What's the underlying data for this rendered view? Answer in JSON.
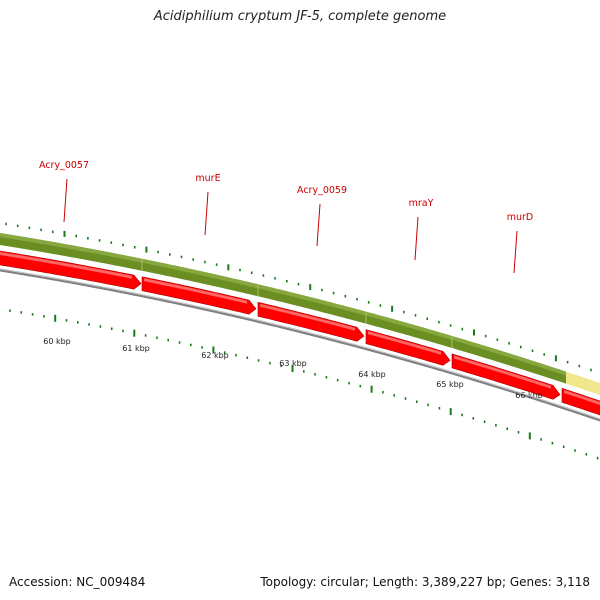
{
  "title": "Acidiphilium cryptum JF-5, complete genome",
  "footer": {
    "accession": "Accession: NC_009484",
    "summary": "Topology: circular; Length: 3,389,227 bp; Genes: 3,118"
  },
  "colors": {
    "gene_fill": "#ff0000",
    "gene_light": "#ff8080",
    "cds_band": "#6b8e23",
    "cds_band_light": "#8fb04a",
    "rna_band": "#f0e68c",
    "backbone": "#808080",
    "tick": "#1a7a1a",
    "gene_label": "#cc0000",
    "scale_label": "#222222"
  },
  "gene_labels": [
    "Acry_0057",
    "murE",
    "Acry_0059",
    "mraY",
    "murD"
  ],
  "scale_labels": [
    "60 kbp",
    "61 kbp",
    "62 kbp",
    "63 kbp",
    "64 kbp",
    "65 kbp",
    "66 kbp"
  ],
  "gene_count_visible": 6
}
